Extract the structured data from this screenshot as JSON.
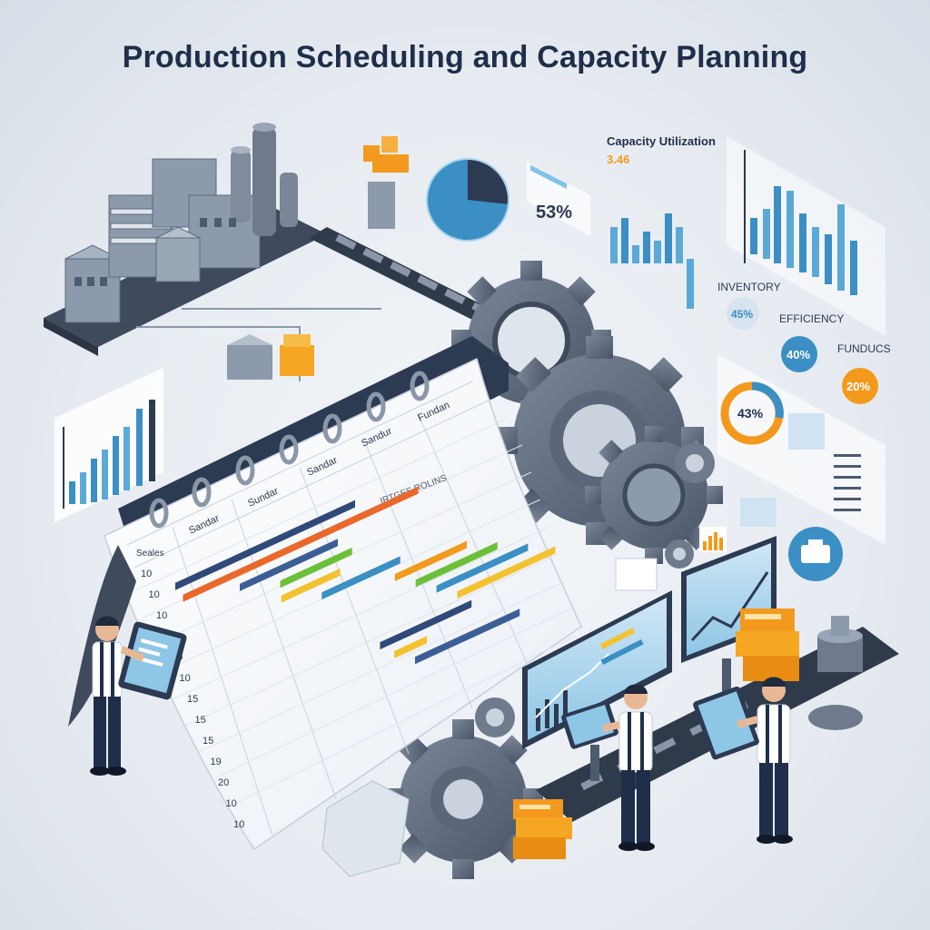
{
  "title": "Production Scheduling and Capacity Planning",
  "colors": {
    "navy": "#1f2f4a",
    "steel": "#4d5b70",
    "blue": "#3b8fc4",
    "lightblue": "#7fc3e6",
    "orange": "#f39a1e",
    "green": "#6cbf3a",
    "yellow": "#f2c230"
  },
  "capacity_panel": {
    "heading": "Capacity Utilization",
    "sub": "3.46",
    "pie_value": "53%"
  },
  "kpis": [
    {
      "label": "INVENTORY",
      "value": "45%"
    },
    {
      "label": "EFFICIENCY",
      "value": "40%"
    },
    {
      "label": "FUNDUCS",
      "value": "20%"
    }
  ],
  "donut_value": "43%",
  "calendar": {
    "columns": [
      "Sandar",
      "Sundar",
      "Sandar",
      "Sandur",
      "Fundan"
    ],
    "header_note": "IRTGES ROLINS",
    "rows": [
      "10",
      "10",
      "10",
      "10",
      "10",
      "10",
      "15",
      "15",
      "15",
      "19",
      "20",
      "10",
      "10"
    ],
    "top_label": "Seales"
  },
  "gantt_bars": [
    {
      "color": "#2f4a78",
      "start": 0.05,
      "len": 0.55
    },
    {
      "color": "#e9692c",
      "start": 0.05,
      "len": 0.72
    },
    {
      "color": "#3b5e95",
      "start": 0.2,
      "len": 0.3
    },
    {
      "color": "#6cbf3a",
      "start": 0.3,
      "len": 0.22
    },
    {
      "color": "#f2c230",
      "start": 0.28,
      "len": 0.18
    },
    {
      "color": "#3b8fc4",
      "start": 0.38,
      "len": 0.24
    },
    {
      "color": "#f39a1e",
      "start": 0.58,
      "len": 0.22
    },
    {
      "color": "#6cbf3a",
      "start": 0.62,
      "len": 0.25
    },
    {
      "color": "#3b8fc4",
      "start": 0.66,
      "len": 0.28
    },
    {
      "color": "#f2c230",
      "start": 0.7,
      "len": 0.3
    },
    {
      "color": "#2f4a78",
      "start": 0.44,
      "len": 0.28
    },
    {
      "color": "#f2c230",
      "start": 0.46,
      "len": 0.1
    },
    {
      "color": "#3b5e95",
      "start": 0.5,
      "len": 0.32
    }
  ],
  "icons": [
    "factory-icon",
    "gear-icon",
    "calendar-icon",
    "worker-icon",
    "monitor-icon",
    "box-icon",
    "conveyor-icon",
    "pie-chart-icon",
    "bar-chart-icon",
    "donut-chart-icon",
    "toolbox-icon"
  ]
}
